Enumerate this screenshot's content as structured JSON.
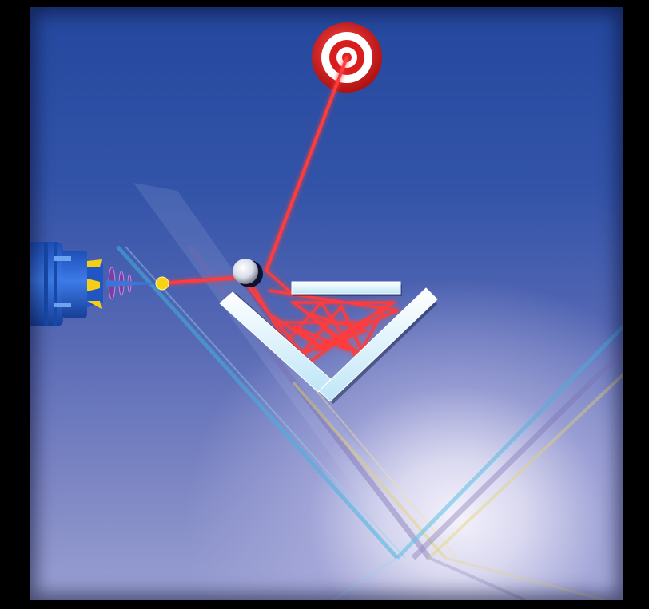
{
  "scene": {
    "type": "laser-reflection-puzzle",
    "colors": {
      "background_top": "#24489e",
      "background_glow": "#f4f2fb",
      "laser": "#ff3b3b",
      "mirror": "#e9f6ff",
      "target_red": "#d81d1d",
      "emitter_body": "#2a64d8",
      "emitter_accent": "#f5cf16"
    }
  },
  "icons": {
    "emitter": "laser-cannon-icon",
    "target": "bullseye-target-icon",
    "ball": "pearl-ball-icon"
  }
}
